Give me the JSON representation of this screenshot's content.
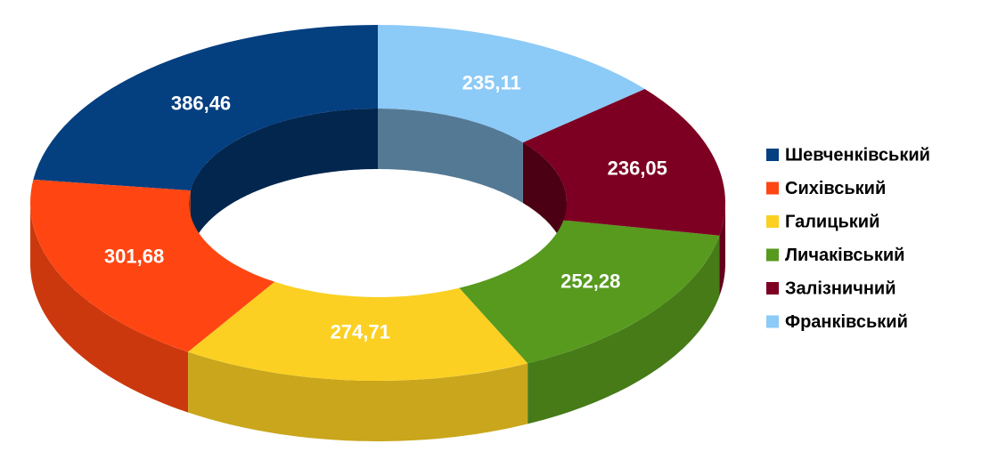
{
  "chart_data": {
    "type": "donut",
    "categories": [
      "Шевченківський",
      "Сихівський",
      "Галицький",
      "Личаківський",
      "Залізничний",
      "Франківський"
    ],
    "values": [
      386.46,
      301.68,
      274.71,
      252.28,
      236.05,
      235.11
    ],
    "value_labels": [
      "386,46",
      "301,68",
      "274,71",
      "252,28",
      "236,05",
      "235,11"
    ],
    "colors": [
      "#043f80",
      "#ff4612",
      "#fbd022",
      "#579a1e",
      "#7d0022",
      "#8ccaf7"
    ],
    "legend": "right"
  }
}
